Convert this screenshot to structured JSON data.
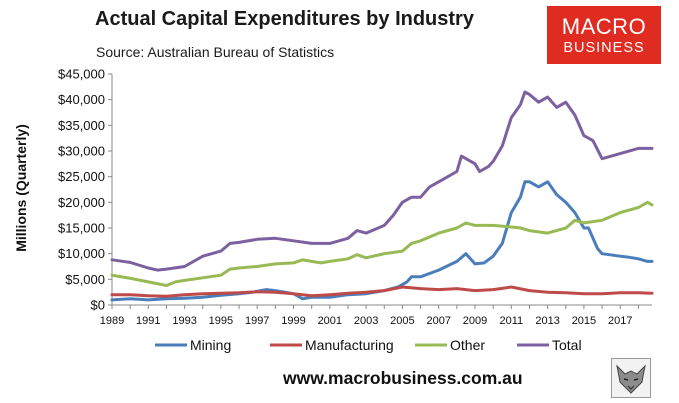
{
  "title": "Actual Capital Expenditures by Industry",
  "subtitle": "Source: Australian Bureau of Statistics",
  "logo": {
    "line1": "MACRO",
    "line2": "BUSINESS"
  },
  "footer": "www.macrobusiness.com.au",
  "colors": {
    "mining": "#4a7ebb",
    "manufacturing": "#be4b48",
    "other": "#98b954",
    "total": "#7d60a0",
    "brand": "#e02b20"
  },
  "chart_data": {
    "type": "line",
    "title": "Actual Capital Expenditures by Industry",
    "xlabel": "",
    "ylabel": "Millions (Quarterly)",
    "ylim": [
      0,
      45000
    ],
    "xlim": [
      1989,
      2018.75
    ],
    "y_ticks": [
      0,
      5000,
      10000,
      15000,
      20000,
      25000,
      30000,
      35000,
      40000,
      45000
    ],
    "y_tick_labels": [
      "$0",
      "$5,000",
      "$10,000",
      "$15,000",
      "$20,000",
      "$25,000",
      "$30,000",
      "$35,000",
      "$40,000",
      "$45,000"
    ],
    "x_ticks": [
      1989,
      1991,
      1993,
      1995,
      1997,
      1999,
      2001,
      2003,
      2005,
      2007,
      2009,
      2011,
      2013,
      2015,
      2017
    ],
    "x_tick_labels": [
      "1989",
      "1991",
      "1993",
      "1995",
      "1997",
      "1999",
      "2001",
      "2003",
      "2005",
      "2007",
      "2009",
      "2011",
      "2013",
      "2015",
      "2017"
    ],
    "grid": false,
    "legend": "bottom",
    "series": [
      {
        "name": "Mining",
        "color": "#4a7ebb",
        "x": [
          1989,
          1990,
          1991,
          1992,
          1993,
          1994,
          1995,
          1996,
          1996.75,
          1997.5,
          1998,
          1999,
          1999.5,
          2000,
          2001,
          2002,
          2003,
          2004,
          2004.75,
          2005.25,
          2005.5,
          2006,
          2007,
          2008,
          2008.5,
          2009,
          2009.5,
          2010,
          2010.5,
          2011,
          2011.5,
          2011.75,
          2012,
          2012.5,
          2013,
          2013.5,
          2014,
          2014.5,
          2015,
          2015.25,
          2015.75,
          2016,
          2017,
          2017.5,
          2018,
          2018.5,
          2018.75
        ],
        "values": [
          1000,
          1200,
          1000,
          1200,
          1300,
          1500,
          1900,
          2200,
          2500,
          3000,
          2800,
          2200,
          1200,
          1500,
          1500,
          2000,
          2200,
          2800,
          3500,
          4500,
          5500,
          5500,
          6800,
          8500,
          10000,
          8000,
          8200,
          9500,
          12000,
          18000,
          21000,
          24000,
          24000,
          23000,
          24000,
          21500,
          20000,
          18000,
          15000,
          15000,
          11000,
          10000,
          9500,
          9300,
          9000,
          8500,
          8500
        ]
      },
      {
        "name": "Manufacturing",
        "color": "#be4b48",
        "x": [
          1989,
          1990,
          1991,
          1992,
          1993,
          1994,
          1995,
          1996,
          1997,
          1998,
          1999,
          2000,
          2001,
          2002,
          2003,
          2004,
          2005,
          2006,
          2007,
          2008,
          2009,
          2010,
          2011,
          2012,
          2013,
          2014,
          2015,
          2016,
          2017,
          2018,
          2018.75
        ],
        "values": [
          2000,
          2000,
          1800,
          1700,
          2000,
          2200,
          2300,
          2400,
          2600,
          2500,
          2200,
          1800,
          2000,
          2300,
          2500,
          2800,
          3500,
          3200,
          3000,
          3200,
          2800,
          3000,
          3500,
          2800,
          2500,
          2400,
          2200,
          2200,
          2400,
          2400,
          2300
        ]
      },
      {
        "name": "Other",
        "color": "#98b954",
        "x": [
          1989,
          1990,
          1991,
          1992,
          1992.5,
          1993,
          1994,
          1995,
          1995.5,
          1996,
          1997,
          1998,
          1999,
          1999.5,
          2000,
          2000.5,
          2001,
          2002,
          2002.5,
          2003,
          2004,
          2005,
          2005.5,
          2006,
          2007,
          2008,
          2008.5,
          2009,
          2010,
          2011,
          2011.5,
          2012,
          2013,
          2014,
          2014.5,
          2015,
          2016,
          2017,
          2018,
          2018.5,
          2018.75
        ],
        "values": [
          5800,
          5200,
          4500,
          3800,
          4500,
          4800,
          5300,
          5800,
          7000,
          7200,
          7500,
          8000,
          8200,
          8800,
          8500,
          8200,
          8500,
          9000,
          9800,
          9200,
          10000,
          10500,
          12000,
          12500,
          14000,
          15000,
          16000,
          15500,
          15500,
          15200,
          15000,
          14500,
          14000,
          15000,
          16500,
          16000,
          16500,
          18000,
          19000,
          20000,
          19500
        ]
      },
      {
        "name": "Total",
        "color": "#7d60a0",
        "x": [
          1989,
          1990,
          1991,
          1991.5,
          1992,
          1993,
          1994,
          1995,
          1995.5,
          1996,
          1997,
          1998,
          1999,
          2000,
          2001,
          2002,
          2002.5,
          2003,
          2004,
          2004.5,
          2005,
          2005.5,
          2006,
          2006.5,
          2007,
          2008,
          2008.25,
          2009,
          2009.25,
          2009.75,
          2010,
          2010.5,
          2011,
          2011.5,
          2011.75,
          2012,
          2012.5,
          2013,
          2013.5,
          2014,
          2014.5,
          2015,
          2015.5,
          2016,
          2017,
          2018,
          2018.75
        ],
        "values": [
          8800,
          8300,
          7200,
          6800,
          7000,
          7500,
          9500,
          10500,
          12000,
          12200,
          12800,
          13000,
          12500,
          12000,
          12000,
          13000,
          14500,
          14000,
          15500,
          17500,
          20000,
          21000,
          21000,
          23000,
          24000,
          26000,
          29000,
          27500,
          26000,
          27000,
          28000,
          31000,
          36500,
          39000,
          41500,
          41000,
          39500,
          40500,
          38500,
          39500,
          37000,
          33000,
          32000,
          28500,
          29500,
          30500,
          30500
        ]
      }
    ]
  }
}
